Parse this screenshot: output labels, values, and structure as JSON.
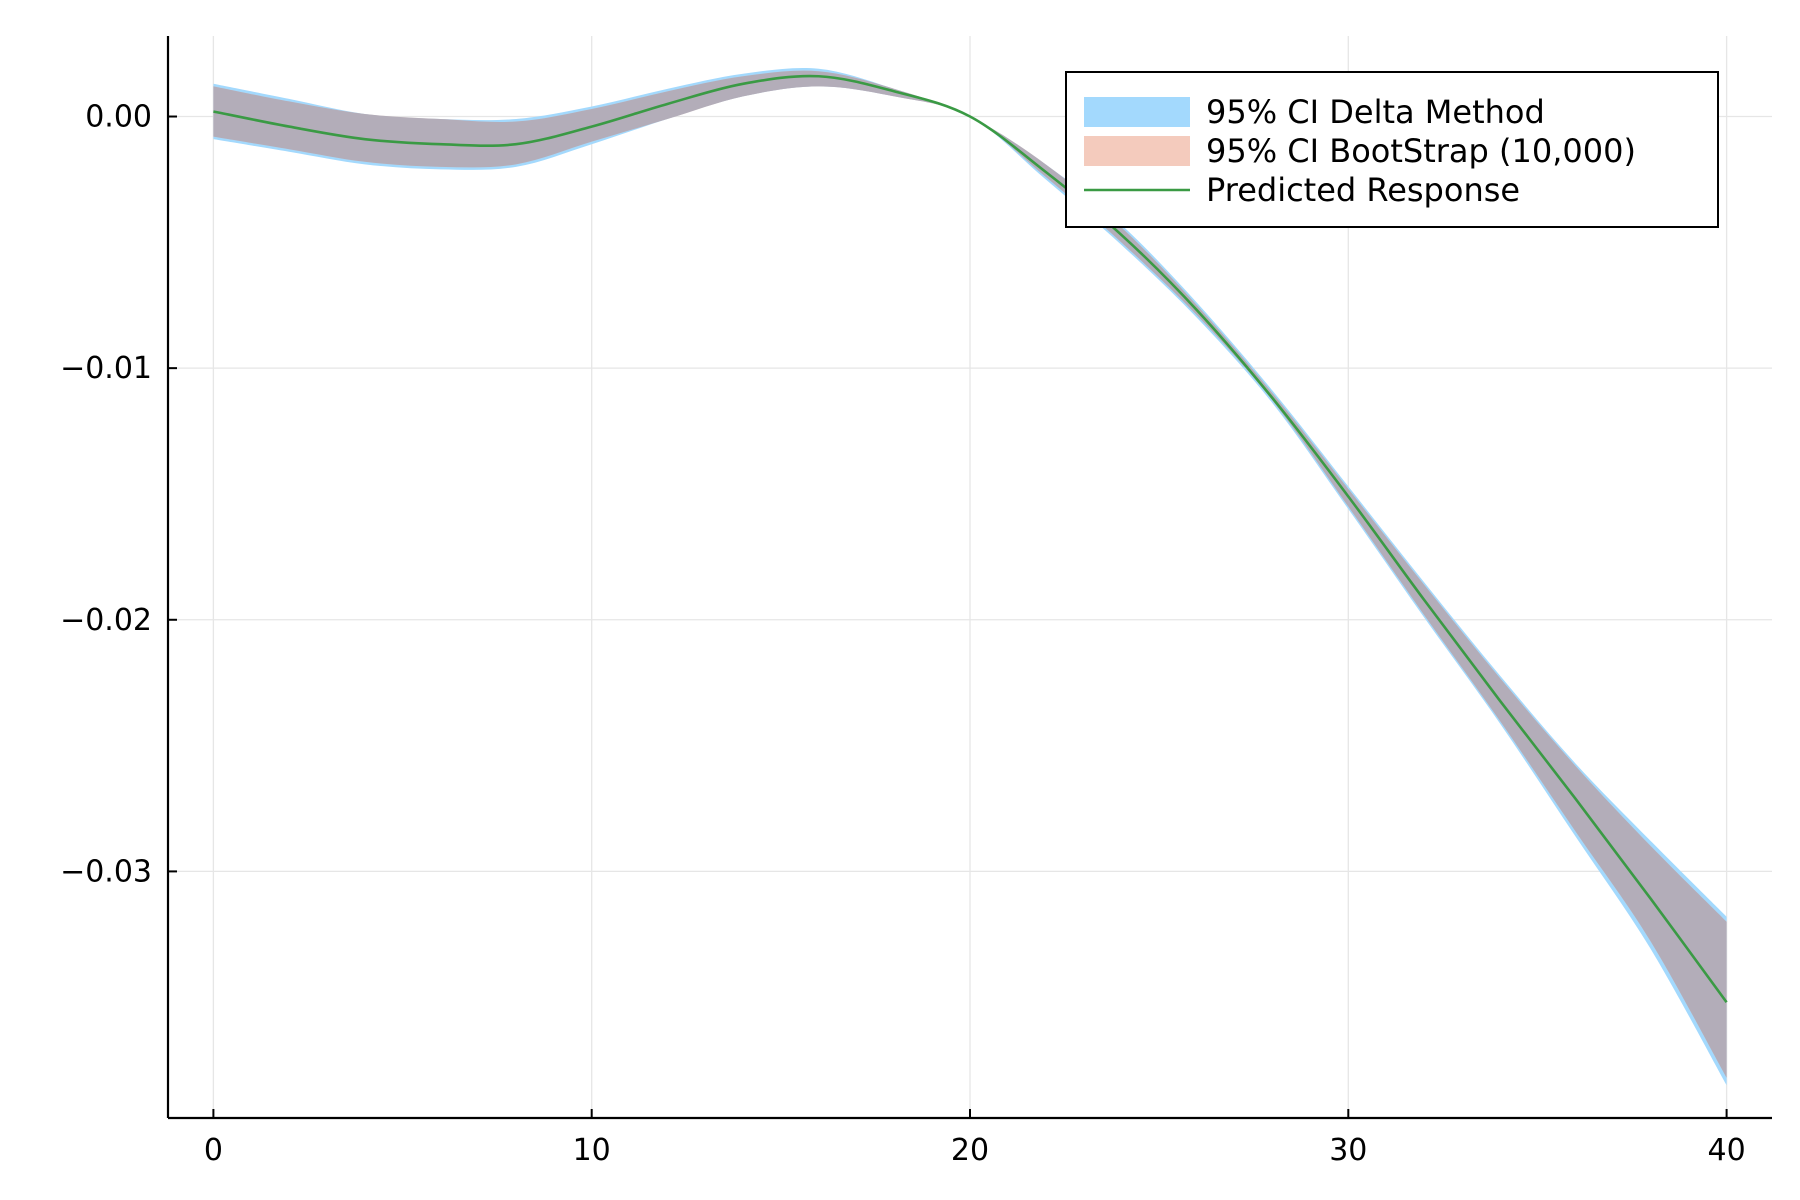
{
  "chart_data": {
    "type": "line",
    "title": "",
    "xlabel": "",
    "ylabel": "",
    "xlim": [
      -1.2,
      41.2
    ],
    "ylim": [
      -0.0398,
      0.0032
    ],
    "grid": true,
    "legend_position": "top-right",
    "x_ticks": [
      0,
      10,
      20,
      30,
      40
    ],
    "x_tick_labels": [
      "0",
      "10",
      "20",
      "30",
      "40"
    ],
    "y_ticks": [
      0.0,
      -0.01,
      -0.02,
      -0.03
    ],
    "y_tick_labels": [
      "0.00",
      "−0.01",
      "−0.02",
      "−0.03"
    ],
    "x": [
      0,
      2,
      4,
      6,
      8,
      10,
      12,
      14,
      16,
      18,
      20,
      22,
      24,
      26,
      28,
      30,
      32,
      34,
      36,
      38,
      40
    ],
    "series": [
      {
        "name": "95% CI Delta Method",
        "kind": "band",
        "color": "#a3d9fd",
        "upper": [
          0.0013,
          0.0007,
          0.0001,
          -0.0001,
          -0.0001,
          0.0004,
          0.0011,
          0.0017,
          0.0019,
          0.0011,
          0.0,
          -0.0019,
          -0.0043,
          -0.0074,
          -0.0109,
          -0.0147,
          -0.0185,
          -0.0222,
          -0.0257,
          -0.0288,
          -0.0318
        ],
        "lower": [
          -0.0009,
          -0.0014,
          -0.0019,
          -0.0021,
          -0.002,
          -0.0011,
          -0.0001,
          0.0008,
          0.0012,
          0.0008,
          0.0,
          -0.0025,
          -0.0051,
          -0.008,
          -0.0114,
          -0.0156,
          -0.0199,
          -0.0241,
          -0.0286,
          -0.0331,
          -0.0385
        ]
      },
      {
        "name": "95% CI BootStrap (10,000)",
        "kind": "band",
        "color": "#f4cbbd",
        "upper": [
          0.0012,
          0.0006,
          0.0001,
          -0.0001,
          -0.0002,
          0.0003,
          0.001,
          0.0016,
          0.0018,
          0.0011,
          0.0,
          -0.0019,
          -0.0044,
          -0.0075,
          -0.011,
          -0.0148,
          -0.0186,
          -0.0223,
          -0.0258,
          -0.029,
          -0.032
        ],
        "lower": [
          -0.0008,
          -0.0013,
          -0.0018,
          -0.002,
          -0.0019,
          -0.001,
          -0.0001,
          0.0008,
          0.0012,
          0.0008,
          0.0,
          -0.0024,
          -0.005,
          -0.0079,
          -0.0113,
          -0.0155,
          -0.0198,
          -0.024,
          -0.0284,
          -0.0328,
          -0.0382
        ]
      },
      {
        "name": "Predicted Response",
        "kind": "line",
        "color": "#3a9a44",
        "values": [
          0.0002,
          -0.0004,
          -0.0009,
          -0.0011,
          -0.0011,
          -0.0004,
          0.0005,
          0.0013,
          0.0016,
          0.001,
          0.0,
          -0.0022,
          -0.0047,
          -0.0077,
          -0.0112,
          -0.0151,
          -0.0192,
          -0.0232,
          -0.0271,
          -0.0311,
          -0.0352
        ]
      }
    ]
  }
}
